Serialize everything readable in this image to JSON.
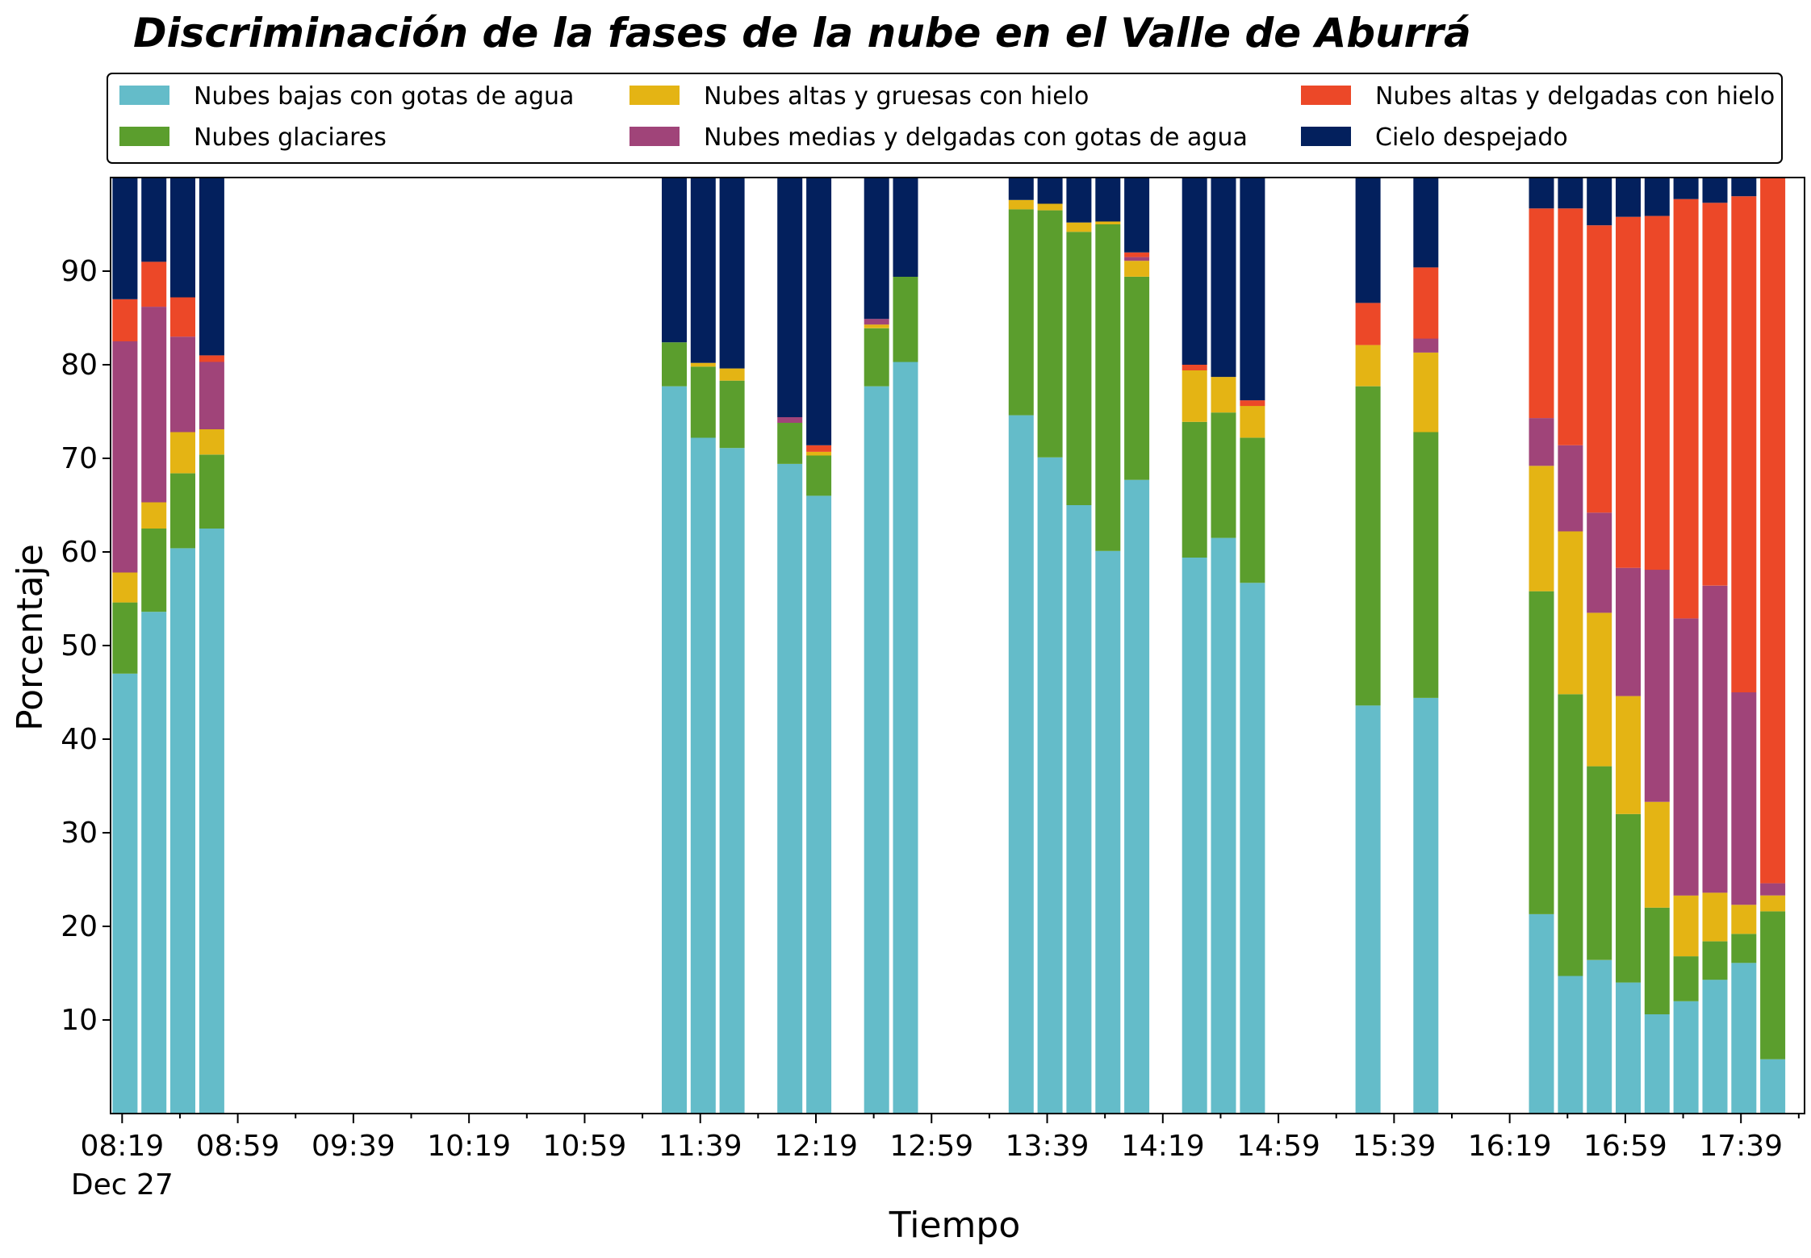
{
  "chart_data": {
    "type": "bar",
    "stacked": true,
    "title": "Discriminación de la fases de la nube en el Valle de Aburrá",
    "xlabel": "Tiempo",
    "ylabel": "Porcentaje",
    "ylim": [
      0,
      100
    ],
    "yticks": [
      10,
      20,
      30,
      40,
      50,
      60,
      70,
      80,
      90
    ],
    "xlim": [
      "08:15",
      "18:01"
    ],
    "x_tick_labels": [
      {
        "time": "08:19",
        "label": "08:19",
        "sublabel": "Dec 27"
      },
      {
        "time": "08:59",
        "label": "08:59"
      },
      {
        "time": "09:39",
        "label": "09:39"
      },
      {
        "time": "10:19",
        "label": "10:19"
      },
      {
        "time": "10:59",
        "label": "10:59"
      },
      {
        "time": "11:39",
        "label": "11:39"
      },
      {
        "time": "12:19",
        "label": "12:19"
      },
      {
        "time": "12:59",
        "label": "12:59"
      },
      {
        "time": "13:39",
        "label": "13:39"
      },
      {
        "time": "14:19",
        "label": "14:19"
      },
      {
        "time": "14:59",
        "label": "14:59"
      },
      {
        "time": "15:39",
        "label": "15:39"
      },
      {
        "time": "16:19",
        "label": "16:19"
      },
      {
        "time": "16:59",
        "label": "16:59"
      },
      {
        "time": "17:39",
        "label": "17:39"
      }
    ],
    "legend": {
      "placement": "top",
      "columns": 3
    },
    "x": [
      "08:20",
      "08:30",
      "08:40",
      "08:50",
      "11:30",
      "11:40",
      "11:50",
      "12:10",
      "12:20",
      "12:40",
      "12:50",
      "13:30",
      "13:40",
      "13:50",
      "14:00",
      "14:10",
      "14:30",
      "14:40",
      "14:50",
      "15:30",
      "15:50",
      "16:30",
      "16:40",
      "16:50",
      "17:00",
      "17:10",
      "17:20",
      "17:30",
      "17:40",
      "17:50"
    ],
    "series": [
      {
        "name": "Nubes bajas con gotas de agua",
        "color": "#64bcc9",
        "values": [
          47.0,
          53.6,
          60.4,
          62.5,
          77.7,
          72.2,
          71.1,
          69.4,
          66.0,
          77.7,
          80.3,
          74.6,
          70.1,
          65.0,
          60.1,
          67.7,
          59.4,
          61.5,
          56.7,
          43.6,
          44.4,
          21.3,
          14.7,
          16.4,
          14.0,
          10.6,
          12.0,
          14.3,
          16.1,
          5.8
        ]
      },
      {
        "name": "Nubes glaciares",
        "color": "#5b9e2d",
        "values": [
          7.6,
          8.9,
          8.0,
          7.9,
          4.7,
          7.6,
          7.2,
          4.4,
          4.3,
          6.2,
          9.1,
          22.0,
          26.4,
          29.2,
          34.9,
          21.7,
          14.5,
          13.4,
          15.5,
          34.1,
          28.4,
          34.5,
          30.1,
          20.7,
          18.0,
          11.4,
          4.8,
          4.1,
          3.1,
          15.8
        ]
      },
      {
        "name": "Nubes altas y gruesas con hielo",
        "color": "#e4b414",
        "values": [
          3.2,
          2.8,
          4.4,
          2.7,
          0.0,
          0.4,
          1.3,
          0.0,
          0.4,
          0.4,
          0.0,
          1.0,
          0.7,
          1.0,
          0.3,
          1.7,
          5.5,
          3.8,
          3.4,
          4.4,
          8.5,
          13.4,
          17.4,
          16.4,
          12.6,
          11.3,
          6.5,
          5.2,
          3.1,
          1.7
        ]
      },
      {
        "name": "Nubes medias y delgadas con gotas de agua",
        "color": "#a04479",
        "values": [
          24.7,
          20.9,
          10.2,
          7.2,
          0.0,
          0.0,
          0.0,
          0.6,
          0.0,
          0.6,
          0.0,
          0.0,
          0.0,
          0.0,
          0.0,
          0.4,
          0.0,
          0.0,
          0.0,
          0.0,
          1.5,
          5.1,
          9.2,
          10.7,
          13.7,
          24.8,
          29.6,
          32.8,
          22.7,
          1.3
        ]
      },
      {
        "name": "Nubes altas y delgadas con hielo",
        "color": "#ec4828",
        "values": [
          4.5,
          4.8,
          4.2,
          0.7,
          0.0,
          0.0,
          0.0,
          0.0,
          0.7,
          0.0,
          0.0,
          0.0,
          0.0,
          0.0,
          0.0,
          0.5,
          0.6,
          0.0,
          0.6,
          4.5,
          7.6,
          22.4,
          25.3,
          30.7,
          37.5,
          37.8,
          44.8,
          40.9,
          53.0,
          75.4
        ]
      },
      {
        "name": "Cielo despejado",
        "color": "#03205d",
        "values": [
          13.0,
          9.0,
          12.8,
          19.0,
          17.6,
          19.8,
          20.4,
          25.6,
          28.6,
          15.1,
          10.6,
          2.4,
          2.8,
          4.8,
          4.7,
          8.0,
          20.0,
          21.3,
          23.8,
          13.4,
          9.6,
          3.3,
          3.3,
          5.1,
          4.2,
          4.1,
          2.3,
          2.7,
          2.0,
          0.0
        ]
      }
    ]
  }
}
